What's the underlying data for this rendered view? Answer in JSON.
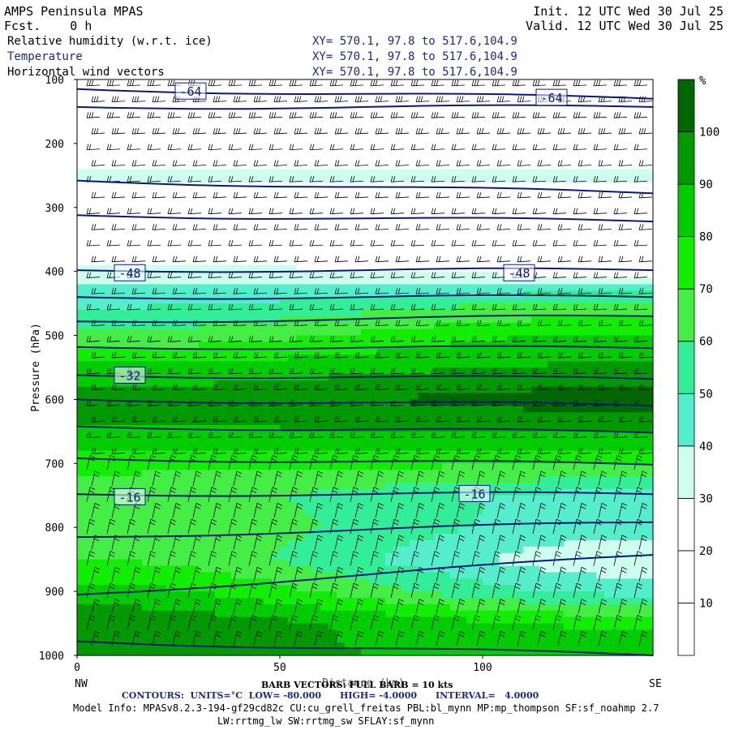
{
  "header": {
    "title": "AMPS Peninsula MPAS",
    "fcst": "Fcst.    0 h",
    "init": "Init. 12 UTC Wed 30 Jul 25",
    "valid": "Valid. 12 UTC Wed 30 Jul 25"
  },
  "fields": [
    {
      "name": "Relative humidity (w.r.t. ice)",
      "xy": "XY= 570.1, 97.8 to 517.6,104.9"
    },
    {
      "name": "Temperature",
      "xy": "XY= 570.1, 97.8 to 517.6,104.9"
    },
    {
      "name": "Horizontal wind vectors",
      "xy": "XY= 570.1, 97.8 to 517.6,104.9"
    }
  ],
  "footer": {
    "barb": "BARB VECTORS: FULL BARB = 10 kts",
    "contours": "CONTOURS:  UNITS=°C  LOW= -80.000      HIGH= -4.0000      INTERVAL=   4.0000",
    "model1": "Model Info: MPASv8.2.3-194-gf29cd82c CU:cu_grell_freitas PBL:bl_mynn MP:mp_thompson SF:sf_noahmp 2.7",
    "model2": "LW:rrtmg_lw SW:rrtmg_sw SFLAY:sf_mynn"
  },
  "chart_data": {
    "type": "heatmap",
    "ylabel": "Pressure (hPa)",
    "xlabel": "Distance (km)",
    "xlim": [
      0,
      142
    ],
    "ylim": [
      1000,
      100
    ],
    "y_scale": "linear (inverted)",
    "x_ticks": [
      0,
      50,
      100
    ],
    "y_ticks": [
      100,
      200,
      300,
      400,
      500,
      600,
      700,
      800,
      900,
      1000
    ],
    "x_end_labels": {
      "left": "NW",
      "right": "SE"
    },
    "colorbar": {
      "unit": "%",
      "tick_labels": [
        10,
        20,
        30,
        40,
        50,
        60,
        70,
        80,
        90,
        100
      ],
      "levels": [
        0,
        10,
        20,
        30,
        40,
        50,
        60,
        70,
        80,
        90,
        100,
        110
      ],
      "colors": [
        "#ffffff",
        "#ffffff",
        "#ffffff",
        "#ccffee",
        "#55eecc",
        "#33ee99",
        "#44ee44",
        "#11ee00",
        "#00cc00",
        "#009900",
        "#006600",
        "#334400"
      ]
    },
    "rh_profile": {
      "pressure": [
        100,
        150,
        200,
        250,
        300,
        350,
        400,
        450,
        500,
        550,
        600,
        650,
        700,
        750,
        800,
        850,
        900,
        950,
        1000
      ],
      "rh_left": [
        15,
        15,
        15,
        35,
        15,
        15,
        35,
        48,
        62,
        82,
        95,
        88,
        72,
        66,
        70,
        70,
        84,
        98,
        95
      ],
      "rh_right": [
        15,
        15,
        15,
        35,
        15,
        15,
        25,
        62,
        82,
        92,
        105,
        92,
        72,
        46,
        44,
        32,
        46,
        78,
        85
      ]
    },
    "temperature_contours": [
      {
        "level": -64,
        "p_left": 115,
        "p_right": 130
      },
      {
        "level": -60,
        "p_left": 143,
        "p_right": 143
      },
      {
        "level": -56,
        "p_left": 258,
        "p_right": 278
      },
      {
        "level": -52,
        "p_left": 312,
        "p_right": 322
      },
      {
        "level": -48,
        "p_left": 398,
        "p_right": 398
      },
      {
        "level": -44,
        "p_left": 440,
        "p_right": 440
      },
      {
        "level": -40,
        "p_left": 478,
        "p_right": 470
      },
      {
        "level": -36,
        "p_left": 518,
        "p_right": 520
      },
      {
        "level": -32,
        "p_left": 562,
        "p_right": 568
      },
      {
        "level": -28,
        "p_left": 600,
        "p_right": 610
      },
      {
        "level": -24,
        "p_left": 642,
        "p_right": 652
      },
      {
        "level": -20,
        "p_left": 692,
        "p_right": 702
      },
      {
        "level": -16,
        "p_left": 748,
        "p_right": 748
      },
      {
        "level": -12,
        "p_left": 815,
        "p_right": 792
      },
      {
        "level": -8,
        "p_left": 905,
        "p_right": 843
      },
      {
        "level": -4,
        "p_left": 978,
        "p_right": 1000
      }
    ],
    "contour_labels": [
      {
        "text": "-64",
        "x_km": 28,
        "p": 118
      },
      {
        "text": "-64",
        "x_km": 117,
        "p": 128
      },
      {
        "text": "-48",
        "x_km": 13,
        "p": 402
      },
      {
        "text": "-48",
        "x_km": 109,
        "p": 402
      },
      {
        "text": "-32",
        "x_km": 13,
        "p": 562
      },
      {
        "text": "-16",
        "x_km": 13,
        "p": 752
      },
      {
        "text": "-16",
        "x_km": 98,
        "p": 747
      }
    ]
  }
}
